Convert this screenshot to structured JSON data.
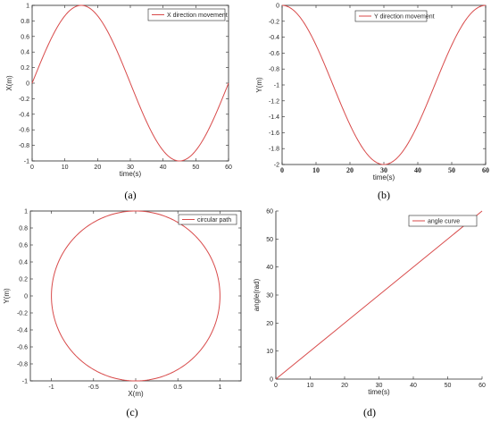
{
  "colors": {
    "line": "#d84a4a",
    "axis": "#262626",
    "legend_border": "#262626",
    "background": "#ffffff"
  },
  "chart_data": [
    {
      "id": "a",
      "type": "line",
      "caption": "(a)",
      "xlabel": "time(s)",
      "ylabel": "X(m)",
      "xlim": [
        0,
        60
      ],
      "ylim": [
        -1,
        1
      ],
      "xticks": [
        0,
        10,
        20,
        30,
        40,
        50,
        60
      ],
      "xtick_labels": [
        "0",
        "10",
        "20",
        "30",
        "40",
        "50",
        "60"
      ],
      "yticks": [
        -1,
        -0.8,
        -0.6,
        -0.4,
        -0.2,
        0,
        0.2,
        0.4,
        0.6,
        0.8,
        1
      ],
      "ytick_labels": [
        "-1",
        "-0.8",
        "-0.6",
        "-0.4",
        "-0.2",
        "0",
        "0.2",
        "0.4",
        "0.6",
        "0.8",
        "1"
      ],
      "legend_position": "top-right",
      "series": [
        {
          "name": "X direction movement",
          "function": "sin(2*pi*t/60)",
          "t_range": [
            0,
            60
          ]
        }
      ]
    },
    {
      "id": "b",
      "type": "line",
      "caption": "(b)",
      "xlabel": "time(s)",
      "ylabel": "Y(m)",
      "xlim": [
        0,
        60
      ],
      "ylim": [
        -2,
        0
      ],
      "xticks": [
        0,
        10,
        20,
        30,
        40,
        50,
        60
      ],
      "xtick_labels": [
        "0",
        "10",
        "20",
        "30",
        "40",
        "50",
        "60"
      ],
      "yticks": [
        -2,
        -1.8,
        -1.6,
        -1.4,
        -1.2,
        -1,
        -0.8,
        -0.6,
        -0.4,
        -0.2,
        0
      ],
      "ytick_labels": [
        "-2",
        "-1.8",
        "-1.6",
        "-1.4",
        "-1.2",
        "-1",
        "-0.8",
        "-0.6",
        "-0.4",
        "-0.2",
        "0"
      ],
      "legend_position": "top-right",
      "series": [
        {
          "name": "Y direction movement",
          "function": "cos(2*pi*t/60)-1",
          "t_range": [
            0,
            60
          ]
        }
      ]
    },
    {
      "id": "c",
      "type": "line",
      "caption": "(c)",
      "xlabel": "X(m)",
      "ylabel": "Y(m)",
      "xlim": [
        -1.25,
        1.25
      ],
      "ylim": [
        -1,
        1
      ],
      "xticks": [
        -1,
        -0.5,
        0,
        0.5,
        1
      ],
      "xtick_labels": [
        "-1",
        "-0.5",
        "0",
        "0.5",
        "1"
      ],
      "yticks": [
        -1,
        -0.8,
        -0.6,
        -0.4,
        -0.2,
        0,
        0.2,
        0.4,
        0.6,
        0.8,
        1
      ],
      "ytick_labels": [
        "-1",
        "-0.8",
        "-0.6",
        "-0.4",
        "-0.2",
        "0",
        "0.2",
        "0.4",
        "0.6",
        "0.8",
        "1"
      ],
      "legend_position": "top-right",
      "series": [
        {
          "name": "circular path",
          "function": "x=sin(2*pi*t/60), y=cos(2*pi*t/60)",
          "t_range": [
            0,
            60
          ]
        }
      ]
    },
    {
      "id": "d",
      "type": "line",
      "caption": "(d)",
      "xlabel": "time(s)",
      "ylabel": "angle(rad)",
      "xlim": [
        0,
        60
      ],
      "ylim": [
        0,
        60
      ],
      "xticks": [
        0,
        10,
        20,
        30,
        40,
        50,
        60
      ],
      "xtick_labels": [
        "0",
        "10",
        "20",
        "30",
        "40",
        "50",
        "60"
      ],
      "yticks": [
        0,
        10,
        20,
        30,
        40,
        50,
        60
      ],
      "ytick_labels": [
        "0",
        "10",
        "20",
        "30",
        "40",
        "50",
        "60"
      ],
      "legend_position": "top-right",
      "series": [
        {
          "name": "angle curve",
          "x": [
            0,
            60
          ],
          "y": [
            0,
            60
          ]
        }
      ]
    }
  ]
}
